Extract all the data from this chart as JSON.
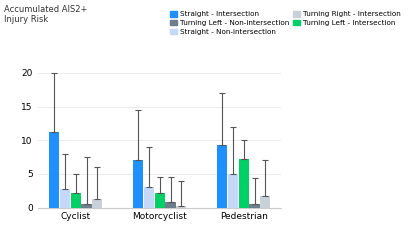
{
  "title": "Accumulated AIS2+\nInjury Risk",
  "categories": [
    "Cyclist",
    "Motorcyclist",
    "Pedestrian"
  ],
  "series": [
    {
      "label": "Straight - Intersection",
      "color": "#1E90FF",
      "values": [
        11.2,
        7.0,
        9.3
      ],
      "err_high": [
        8.8,
        7.5,
        7.7
      ]
    },
    {
      "label": "Straight - Non-intersection",
      "color": "#C5D8F8",
      "values": [
        2.8,
        3.0,
        5.0
      ],
      "err_high": [
        5.2,
        6.0,
        7.0
      ]
    },
    {
      "label": "Turning Left - Intersection",
      "color": "#00D166",
      "values": [
        2.2,
        2.2,
        7.2
      ],
      "err_high": [
        2.8,
        2.3,
        2.8
      ]
    },
    {
      "label": "Turning Left - Non-intersection",
      "color": "#6E7E8A",
      "values": [
        0.5,
        0.8,
        0.5
      ],
      "err_high": [
        7.0,
        3.7,
        3.9
      ]
    },
    {
      "label": "Turning Right - Intersection",
      "color": "#C8D0D8",
      "values": [
        1.3,
        0.2,
        1.8
      ],
      "err_high": [
        4.7,
        3.8,
        5.2
      ]
    }
  ],
  "ylim": [
    0,
    21
  ],
  "yticks": [
    0,
    5,
    10,
    15,
    20
  ],
  "background_color": "#FFFFFF"
}
